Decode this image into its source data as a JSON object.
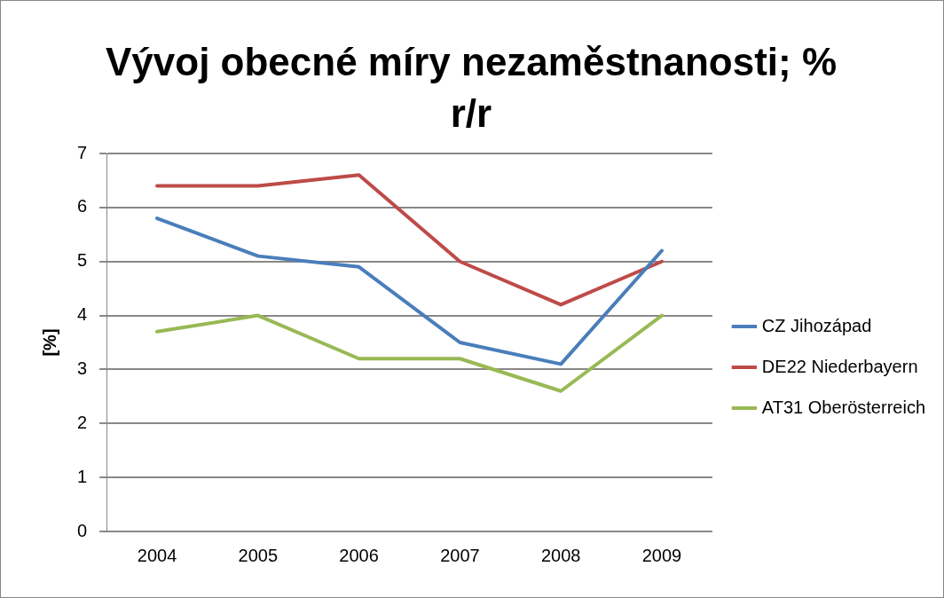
{
  "chart_data": {
    "type": "line",
    "title": "Vývoj obecné míry nezaměstnanosti; % r/r",
    "ylabel": "[%]",
    "categories": [
      "2004",
      "2005",
      "2006",
      "2007",
      "2008",
      "2009"
    ],
    "series": [
      {
        "name": "CZ Jihozápad",
        "color": "#4a7ebb",
        "values": [
          5.8,
          5.1,
          4.9,
          3.5,
          3.1,
          5.2
        ]
      },
      {
        "name": "DE22 Niederbayern",
        "color": "#be4b48",
        "values": [
          6.4,
          6.4,
          6.6,
          5.0,
          4.2,
          5.0
        ]
      },
      {
        "name": "AT31 Oberösterreich",
        "color": "#98b954",
        "values": [
          3.7,
          4.0,
          3.2,
          3.2,
          2.6,
          4.0
        ]
      }
    ],
    "ylim": [
      0,
      7
    ],
    "yticks": [
      0,
      1,
      2,
      3,
      4,
      5,
      6,
      7
    ],
    "grid": "y",
    "legend": "right",
    "marker": "none",
    "line_style": "solid"
  }
}
